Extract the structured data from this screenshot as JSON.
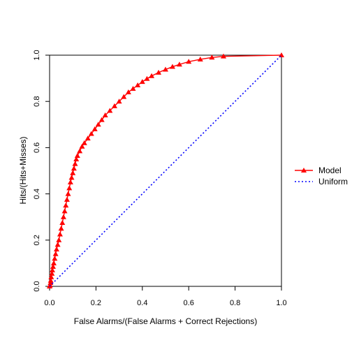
{
  "chart_data": {
    "type": "line",
    "title": "",
    "xlabel": "False Alarms/(False Alarms + Correct Rejections)",
    "ylabel": "Hits/(Hits+Misses)",
    "xlim": [
      0,
      1
    ],
    "ylim": [
      0,
      1
    ],
    "x_ticks": [
      "0.0",
      "0.2",
      "0.4",
      "0.6",
      "0.8",
      "1.0"
    ],
    "y_ticks": [
      "0.0",
      "0.2",
      "0.4",
      "0.6",
      "0.8",
      "1.0"
    ],
    "grid": false,
    "legend": {
      "placement": "right",
      "entries": [
        "Model",
        "Uniform"
      ]
    },
    "series": [
      {
        "name": "Model",
        "color": "#ff0000",
        "marker": "triangle",
        "line": "solid",
        "points": [
          [
            0.0,
            0.0
          ],
          [
            0.002,
            0.005
          ],
          [
            0.004,
            0.015
          ],
          [
            0.005,
            0.025
          ],
          [
            0.007,
            0.04
          ],
          [
            0.01,
            0.055
          ],
          [
            0.012,
            0.07
          ],
          [
            0.015,
            0.085
          ],
          [
            0.018,
            0.1
          ],
          [
            0.022,
            0.12
          ],
          [
            0.026,
            0.14
          ],
          [
            0.03,
            0.16
          ],
          [
            0.035,
            0.18
          ],
          [
            0.04,
            0.2
          ],
          [
            0.045,
            0.225
          ],
          [
            0.05,
            0.25
          ],
          [
            0.055,
            0.275
          ],
          [
            0.06,
            0.3
          ],
          [
            0.065,
            0.325
          ],
          [
            0.07,
            0.35
          ],
          [
            0.075,
            0.375
          ],
          [
            0.08,
            0.4
          ],
          [
            0.085,
            0.425
          ],
          [
            0.09,
            0.45
          ],
          [
            0.095,
            0.47
          ],
          [
            0.1,
            0.49
          ],
          [
            0.105,
            0.51
          ],
          [
            0.11,
            0.53
          ],
          [
            0.115,
            0.55
          ],
          [
            0.12,
            0.565
          ],
          [
            0.13,
            0.585
          ],
          [
            0.14,
            0.605
          ],
          [
            0.15,
            0.62
          ],
          [
            0.165,
            0.64
          ],
          [
            0.18,
            0.66
          ],
          [
            0.195,
            0.68
          ],
          [
            0.21,
            0.7
          ],
          [
            0.225,
            0.72
          ],
          [
            0.24,
            0.74
          ],
          [
            0.26,
            0.76
          ],
          [
            0.28,
            0.78
          ],
          [
            0.3,
            0.8
          ],
          [
            0.32,
            0.82
          ],
          [
            0.34,
            0.84
          ],
          [
            0.36,
            0.855
          ],
          [
            0.38,
            0.87
          ],
          [
            0.4,
            0.885
          ],
          [
            0.42,
            0.898
          ],
          [
            0.44,
            0.91
          ],
          [
            0.47,
            0.925
          ],
          [
            0.5,
            0.938
          ],
          [
            0.53,
            0.95
          ],
          [
            0.56,
            0.96
          ],
          [
            0.6,
            0.972
          ],
          [
            0.65,
            0.982
          ],
          [
            0.7,
            0.99
          ],
          [
            0.75,
            0.995
          ],
          [
            1.0,
            1.0
          ]
        ]
      },
      {
        "name": "Uniform",
        "color": "#0000ff",
        "line": "dotted",
        "points": [
          [
            0,
            0
          ],
          [
            1,
            1
          ]
        ]
      }
    ]
  }
}
